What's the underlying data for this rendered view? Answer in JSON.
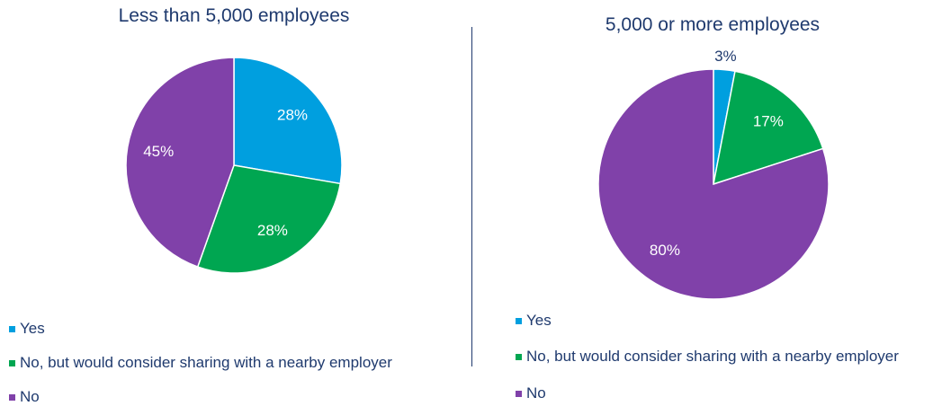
{
  "chart_data": [
    {
      "type": "pie",
      "title": "Less than 5,000 employees",
      "categories": [
        "Yes",
        "No, but would consider sharing with a nearby employer",
        "No"
      ],
      "values": [
        28,
        28,
        45
      ],
      "labels": [
        "28%",
        "28%",
        "45%"
      ],
      "colors": [
        "#009fdf",
        "#00a651",
        "#8041a9"
      ],
      "legend": "bottom-left"
    },
    {
      "type": "pie",
      "title": "5,000 or more employees",
      "categories": [
        "Yes",
        "No, but would consider sharing with a nearby employer",
        "No"
      ],
      "values": [
        3,
        17,
        80
      ],
      "labels": [
        "3%",
        "17%",
        "80%"
      ],
      "colors": [
        "#009fdf",
        "#00a651",
        "#8041a9"
      ],
      "legend": "bottom-left"
    }
  ]
}
